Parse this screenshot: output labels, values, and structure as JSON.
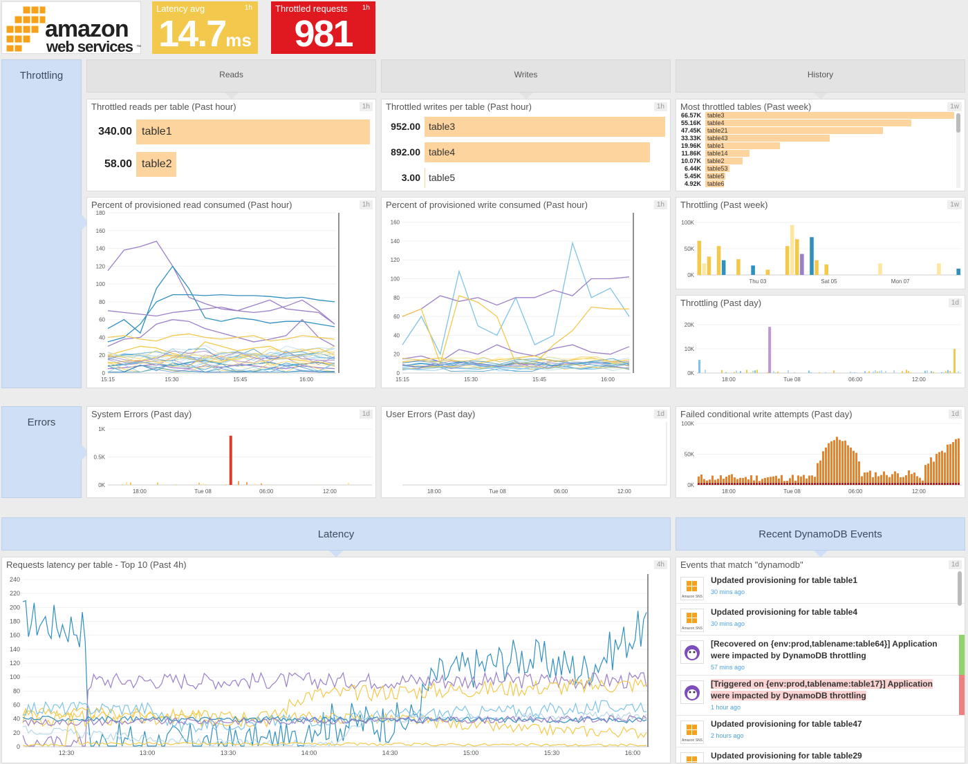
{
  "logo": {
    "line1": "amazon",
    "line2": "web services",
    "tm": "™"
  },
  "kpis": [
    {
      "title": "Latency avg",
      "span": "1h",
      "value": "14.7",
      "unit": "ms",
      "color": "#f2c94c"
    },
    {
      "title": "Throttled requests",
      "span": "1h",
      "value": "981",
      "color": "#e0181f"
    }
  ],
  "sections": {
    "throttling": "Throttling",
    "errors": "Errors"
  },
  "headers": {
    "reads": "Reads",
    "writes": "Writes",
    "history": "History",
    "latency": "Latency",
    "events": "Recent DynamoDB Events"
  },
  "panels": {
    "reads_top": {
      "title": "Throttled reads per table (Past hour)",
      "span": "1h",
      "rows": [
        {
          "value": "340.00",
          "name": "table1",
          "v": 340
        },
        {
          "value": "58.00",
          "name": "table2",
          "v": 58
        }
      ],
      "max": 340
    },
    "writes_top": {
      "title": "Throttled writes per table (Past hour)",
      "span": "1h",
      "rows": [
        {
          "value": "952.00",
          "name": "table3",
          "v": 952
        },
        {
          "value": "892.00",
          "name": "table4",
          "v": 892
        },
        {
          "value": "3.00",
          "name": "table5",
          "v": 3
        }
      ],
      "max": 952
    },
    "most_throttled": {
      "title": "Most throttled tables (Past week)",
      "span": "1w",
      "rows": [
        {
          "value": "66.57K",
          "name": "table3",
          "v": 66.57
        },
        {
          "value": "55.16K",
          "name": "table4",
          "v": 55.16
        },
        {
          "value": "47.45K",
          "name": "table21",
          "v": 47.45
        },
        {
          "value": "33.33K",
          "name": "table43",
          "v": 33.33
        },
        {
          "value": "19.96K",
          "name": "table1",
          "v": 19.96
        },
        {
          "value": "11.86K",
          "name": "table14",
          "v": 11.86
        },
        {
          "value": "10.07K",
          "name": "table2",
          "v": 10.07
        },
        {
          "value": "6.44K",
          "name": "table53",
          "v": 6.44
        },
        {
          "value": "5.45K",
          "name": "table5",
          "v": 5.45
        },
        {
          "value": "4.92K",
          "name": "table6",
          "v": 4.92
        }
      ],
      "max": 66.57
    },
    "read_consumed": {
      "title": "Percent of provisioned read consumed (Past hour)",
      "span": "1h"
    },
    "write_consumed": {
      "title": "Percent of provisioned write consumed (Past hour)",
      "span": "1h"
    },
    "throttling_week": {
      "title": "Throttling (Past week)",
      "span": "1w"
    },
    "throttling_day": {
      "title": "Throttling (Past day)",
      "span": "1d"
    },
    "system_errors": {
      "title": "System Errors (Past day)",
      "span": "1d"
    },
    "user_errors": {
      "title": "User Errors (Past day)",
      "span": "1d"
    },
    "failed_writes": {
      "title": "Failed conditional write attempts (Past day)",
      "span": "1d"
    },
    "latency_chart": {
      "title": "Requests latency per table - Top 10 (Past 4h)",
      "span": "4h"
    },
    "events": {
      "title": "Events that match \"dynamodb\"",
      "span": "1d"
    }
  },
  "events": [
    {
      "text": "Updated provisioning for table table1",
      "time": "30 mins ago",
      "icon": "amazon-sns-icon",
      "icon_label": "Amazon SNS",
      "status": ""
    },
    {
      "text": "Updated provisioning for table table4",
      "time": "30 mins ago",
      "icon": "amazon-sns-icon",
      "icon_label": "Amazon SNS",
      "status": ""
    },
    {
      "text": "[Recovered on {env:prod,tablename:table64}] Application were impacted by DynamoDB throttling",
      "time": "57 mins ago",
      "icon": "datadog-icon",
      "status": "#8fd36b"
    },
    {
      "text": "[Triggered on {env:prod,tablename:table17}] Application were impacted by DynamoDB throttling",
      "time": "1 hour ago",
      "icon": "datadog-icon",
      "status": "#f08080",
      "highlight": true
    },
    {
      "text": "Updated provisioning for table table47",
      "time": "2 hours ago",
      "icon": "amazon-sns-icon",
      "icon_label": "Amazon SNS",
      "status": ""
    },
    {
      "text": "Updated provisioning for table table29",
      "time": "",
      "icon": "amazon-sns-icon",
      "icon_label": "Amazon SNS",
      "status": ""
    }
  ],
  "chart_data": [
    {
      "id": "read_consumed",
      "type": "line",
      "title": "Percent of provisioned read consumed (Past hour)",
      "ylim": [
        0,
        180
      ],
      "yticks": [
        0,
        20,
        40,
        60,
        80,
        100,
        120,
        140,
        160,
        180
      ],
      "xticks": [
        "15:15",
        "15:30",
        "15:45",
        "16:00"
      ],
      "xticks_pos": [
        0,
        0.28,
        0.58,
        0.87
      ],
      "series": [
        {
          "color": "#9b7fc9",
          "values": [
            115,
            138,
            142,
            148,
            120,
            85,
            78,
            72,
            70,
            76,
            82,
            72,
            70,
            68,
            55
          ]
        },
        {
          "color": "#2f8fbf",
          "values": [
            50,
            60,
            45,
            95,
            120,
            95,
            62,
            58,
            62,
            60,
            56,
            58,
            58,
            55,
            52
          ]
        },
        {
          "color": "#2f8fbf",
          "values": [
            35,
            40,
            55,
            80,
            88,
            88,
            87,
            88,
            87,
            87,
            86,
            84,
            85,
            82,
            80
          ]
        },
        {
          "color": "#9b7fc9",
          "values": [
            70,
            68,
            66,
            64,
            68,
            70,
            72,
            74,
            70,
            68,
            70,
            75,
            82,
            70,
            55
          ]
        },
        {
          "color": "#9b7fc9",
          "values": [
            30,
            38,
            40,
            55,
            60,
            58,
            50,
            45,
            40,
            35,
            38,
            42,
            60,
            40,
            30
          ]
        },
        {
          "color": "#f2c94c",
          "values": [
            40,
            42,
            38,
            36,
            42,
            44,
            40,
            38,
            40,
            42,
            36,
            38,
            42,
            40,
            38
          ]
        },
        {
          "color": "#f2c94c",
          "values": [
            20,
            25,
            30,
            28,
            22,
            18,
            35,
            30,
            25,
            28,
            30,
            22,
            25,
            28,
            20
          ]
        },
        {
          "color": "#7ec3e6",
          "values": [
            18,
            20,
            22,
            24,
            20,
            18,
            16,
            22,
            24,
            20,
            18,
            22,
            24,
            18,
            16
          ]
        },
        {
          "color": "#f2c94c",
          "values": [
            12,
            10,
            14,
            18,
            20,
            16,
            14,
            12,
            18,
            22,
            20,
            16,
            14,
            12,
            10
          ]
        },
        {
          "color": "#2f8fbf",
          "values": [
            8,
            10,
            12,
            10,
            8,
            12,
            14,
            10,
            8,
            10,
            12,
            8,
            10,
            12,
            8
          ]
        },
        {
          "color": "#9b7fc9",
          "values": [
            5,
            6,
            8,
            10,
            6,
            5,
            8,
            6,
            10,
            8,
            6,
            5,
            8,
            6,
            5
          ]
        }
      ]
    },
    {
      "id": "write_consumed",
      "type": "line",
      "title": "Percent of provisioned write consumed (Past hour)",
      "ylim": [
        0,
        170
      ],
      "yticks": [
        0,
        20,
        40,
        60,
        80,
        100,
        120,
        140,
        160
      ],
      "xticks": [
        "15:15",
        "15:30",
        "15:45",
        "16:00"
      ],
      "xticks_pos": [
        0,
        0.3,
        0.6,
        0.9
      ],
      "series": [
        {
          "color": "#7ec3e6",
          "values": [
            30,
            60,
            20,
            108,
            50,
            40,
            80,
            30,
            40,
            138,
            80,
            90,
            60
          ]
        },
        {
          "color": "#9b7fc9",
          "values": [
            60,
            68,
            82,
            76,
            80,
            72,
            80,
            80,
            88,
            82,
            100,
            100,
            102
          ]
        },
        {
          "color": "#f2c94c",
          "values": [
            60,
            68,
            10,
            82,
            75,
            60,
            10,
            10,
            30,
            45,
            70,
            68,
            68
          ]
        },
        {
          "color": "#9b7fc9",
          "values": [
            15,
            18,
            12,
            25,
            20,
            30,
            22,
            18,
            26,
            30,
            22,
            20,
            28
          ]
        },
        {
          "color": "#f2c94c",
          "values": [
            12,
            14,
            16,
            12,
            10,
            14,
            16,
            18,
            12,
            14,
            16,
            12,
            14
          ]
        },
        {
          "color": "#2f8fbf",
          "values": [
            8,
            10,
            8,
            12,
            10,
            8,
            10,
            12,
            8,
            10,
            12,
            10,
            8
          ]
        },
        {
          "color": "#7ec3e6",
          "values": [
            5,
            4,
            6,
            5,
            4,
            6,
            5,
            4,
            6,
            5,
            4,
            6,
            5
          ]
        }
      ]
    },
    {
      "id": "throttling_week",
      "type": "bar",
      "title": "Throttling (Past week)",
      "ylim": [
        0,
        100000
      ],
      "yticks": [
        "0K",
        "50K",
        "100K"
      ],
      "xticks": [
        "Thu 03",
        "Sat 05",
        "Mon 07"
      ],
      "xticks_pos": [
        0.23,
        0.5,
        0.77
      ],
      "values": [
        65000,
        22000,
        35000,
        0,
        55000,
        28000,
        0,
        0,
        30000,
        0,
        0,
        18000,
        0,
        0,
        10000,
        0,
        0,
        0,
        55000,
        95000,
        68000,
        40000,
        0,
        72000,
        28000,
        0,
        20000,
        0,
        0,
        0,
        0,
        0,
        0,
        0,
        0,
        0,
        0,
        22000,
        0,
        0,
        0,
        0,
        0,
        0,
        0,
        0,
        0,
        0,
        0,
        22000,
        0,
        0,
        0,
        12000
      ],
      "colors": [
        "#f2c94c",
        "#fde7a0",
        "#f2c94c",
        "#9b7fc9",
        "#f2c94c",
        "#2f8fbf"
      ]
    },
    {
      "id": "throttling_day",
      "type": "bar",
      "title": "Throttling (Past day)",
      "ylim": [
        0,
        22000
      ],
      "yticks": [
        "0K",
        "10K",
        "20K"
      ],
      "xticks": [
        "18:00",
        "Tue 08",
        "06:00",
        "12:00"
      ],
      "xticks_pos": [
        0.12,
        0.36,
        0.6,
        0.84
      ],
      "spike_at": 0.27,
      "spike_value": 21000,
      "spike_color": "#b99ad6"
    },
    {
      "id": "system_errors",
      "type": "bar",
      "title": "System Errors (Past day)",
      "ylim": [
        0,
        1000
      ],
      "yticks": [
        "0K",
        "0.5K",
        "1K"
      ],
      "xticks": [
        "18:00",
        "Tue 08",
        "06:00",
        "12:00"
      ],
      "xticks_pos": [
        0.12,
        0.36,
        0.6,
        0.84
      ],
      "spike_at": 0.46,
      "spike_value": 880,
      "spike_color": "#e0392b"
    },
    {
      "id": "user_errors",
      "type": "bar",
      "title": "User Errors (Past day)",
      "ylim": [
        0,
        1000
      ],
      "yticks": [],
      "xticks": [
        "18:00",
        "Tue 08",
        "06:00",
        "12:00"
      ],
      "xticks_pos": [
        0.12,
        0.36,
        0.6,
        0.84
      ]
    },
    {
      "id": "failed_writes",
      "type": "bar",
      "title": "Failed conditional write attempts (Past day)",
      "ylim": [
        0,
        100000
      ],
      "yticks": [
        "0K",
        "50K",
        "100K"
      ],
      "xticks": [
        "18:00",
        "Tue 08",
        "06:00",
        "12:00"
      ],
      "xticks_pos": [
        0.12,
        0.36,
        0.6,
        0.84
      ]
    },
    {
      "id": "latency_chart",
      "type": "line",
      "title": "Requests latency per table - Top 10 (Past 4h)",
      "ylim": [
        0,
        240
      ],
      "yticks": [
        0,
        20,
        40,
        60,
        80,
        100,
        120,
        140,
        160,
        180,
        200,
        220,
        240
      ],
      "xticks": [
        "12:30",
        "13:00",
        "13:30",
        "14:00",
        "14:30",
        "15:00",
        "15:30",
        "16:00"
      ]
    }
  ]
}
